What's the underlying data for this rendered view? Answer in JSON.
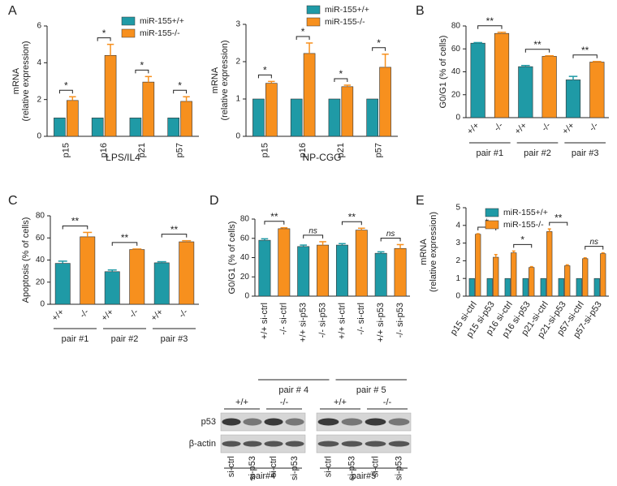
{
  "chart_data": [
    {
      "type": "bar",
      "panel": "A",
      "ylabel": [
        "mRNA",
        "(relative expression)"
      ],
      "xlabel": "LPS/IL4",
      "categories": [
        "p15",
        "p16",
        "p21",
        "p57"
      ],
      "series": [
        {
          "name": "miR-155+/+",
          "color": "#1f9aa6",
          "values": [
            1,
            1,
            1,
            1
          ]
        },
        {
          "name": "miR-155-/-",
          "color": "#f7901e",
          "values": [
            1.95,
            4.4,
            2.95,
            1.9
          ],
          "errors": [
            0.2,
            0.6,
            0.3,
            0.25
          ]
        }
      ],
      "significance": [
        "*",
        "*",
        "*",
        "*"
      ],
      "ylim": [
        0,
        6
      ],
      "yticks": [
        0,
        2,
        4,
        6
      ]
    },
    {
      "type": "bar",
      "ylabel": [
        "mRNA",
        "(relative expression)"
      ],
      "xlabel": "NP-CGG",
      "categories": [
        "p15",
        "p16",
        "p21",
        "p57"
      ],
      "series": [
        {
          "name": "miR-155+/+",
          "color": "#1f9aa6",
          "values": [
            1,
            1,
            1,
            1
          ]
        },
        {
          "name": "miR-155-/-",
          "color": "#f7901e",
          "values": [
            1.42,
            2.22,
            1.33,
            1.85
          ],
          "errors": [
            0.05,
            0.28,
            0.04,
            0.35
          ]
        }
      ],
      "significance": [
        "*",
        "*",
        "*",
        "*"
      ],
      "ylim": [
        0,
        3
      ],
      "yticks": [
        0,
        1,
        2,
        3
      ]
    },
    {
      "type": "bar",
      "panel": "B",
      "ylabel": "G0/G1 (% of cells)",
      "categories": [
        "+/+",
        "-/-",
        "+/+",
        "-/-",
        "+/+",
        "-/-"
      ],
      "values": [
        65,
        73.5,
        44.5,
        53.5,
        33,
        48.5
      ],
      "errors": [
        0.5,
        1,
        1,
        0.5,
        3,
        0.5
      ],
      "colors": [
        "#1f9aa6",
        "#f7901e",
        "#1f9aa6",
        "#f7901e",
        "#1f9aa6",
        "#f7901e"
      ],
      "groups": [
        "pair #1",
        "pair #2",
        "pair #3"
      ],
      "significance": [
        "**",
        "**",
        "**"
      ],
      "ylim": [
        0,
        80
      ],
      "yticks": [
        0,
        20,
        40,
        60,
        80
      ]
    },
    {
      "type": "bar",
      "panel": "C",
      "ylabel": "Apoptosis (% of cells)",
      "categories": [
        "+/+",
        "-/-",
        "+/+",
        "-/-",
        "+/+",
        "-/-"
      ],
      "values": [
        37,
        61,
        29.5,
        49.5,
        37.5,
        56.5
      ],
      "errors": [
        2,
        4,
        1.5,
        0.5,
        1,
        1
      ],
      "colors": [
        "#1f9aa6",
        "#f7901e",
        "#1f9aa6",
        "#f7901e",
        "#1f9aa6",
        "#f7901e"
      ],
      "groups": [
        "pair #1",
        "pair #2",
        "pair #3"
      ],
      "significance": [
        "**",
        "**",
        "**"
      ],
      "ylim": [
        0,
        80
      ],
      "yticks": [
        0,
        20,
        40,
        60,
        80
      ]
    },
    {
      "type": "bar",
      "panel": "D",
      "ylabel": "G0/G1 (% of cells)",
      "categories": [
        "+/+ si-ctrl",
        "-/- si-ctrl",
        "+/+ si-p53",
        "-/- si-p53",
        "+/+ si-ctrl",
        "-/- si-ctrl",
        "+/+ si-p53",
        "-/- si-p53"
      ],
      "values": [
        58,
        70,
        51.5,
        53,
        53,
        68.5,
        44.5,
        49.5
      ],
      "errors": [
        1.5,
        1,
        1.5,
        3.5,
        1.5,
        2,
        1.5,
        4
      ],
      "colors": [
        "#1f9aa6",
        "#f7901e",
        "#1f9aa6",
        "#f7901e",
        "#1f9aa6",
        "#f7901e",
        "#1f9aa6",
        "#f7901e"
      ],
      "groups": [
        "pair # 4",
        "pair # 5"
      ],
      "significance": [
        "**",
        "ns",
        "**",
        "ns"
      ],
      "ylim": [
        0,
        80
      ],
      "yticks": [
        0,
        20,
        40,
        60,
        80
      ]
    },
    {
      "type": "bar",
      "panel": "E",
      "ylabel": [
        "mRNA",
        "(relative expression)"
      ],
      "categories": [
        "p15 si-ctrl",
        "p15 si-p53",
        "p16 si-ctrl",
        "p16 si-p53",
        "p21-si-ctrl",
        "p21-si-p53",
        "p57-si-ctrl",
        "p57-si-p53"
      ],
      "series": [
        {
          "name": "miR-155+/+",
          "color": "#1f9aa6",
          "values": [
            1,
            1,
            1,
            1,
            1,
            1,
            1,
            1
          ]
        },
        {
          "name": "miR-155-/-",
          "color": "#f7901e",
          "values": [
            3.5,
            2.2,
            2.45,
            1.62,
            3.65,
            1.72,
            2.12,
            2.4
          ],
          "errors": [
            0.03,
            0.15,
            0.1,
            0.05,
            0.15,
            0.05,
            0.05,
            0.05
          ]
        }
      ],
      "significance": [
        "*",
        "*",
        "**",
        "ns"
      ],
      "ylim": [
        0,
        5
      ],
      "yticks": [
        0,
        1,
        2,
        3,
        4,
        5
      ]
    }
  ],
  "blot": {
    "genotypes": [
      "+/+",
      "-/-",
      "+/+",
      "-/-"
    ],
    "rows": [
      "p53",
      "β-actin"
    ],
    "lanes": [
      "si-ctrl",
      "si-p53",
      "si-ctrl",
      "si-p53",
      "si-ctrl",
      "si-p53",
      "si-ctrl",
      "si-p53"
    ],
    "pairs": [
      "pair#4",
      "pair#5"
    ]
  }
}
